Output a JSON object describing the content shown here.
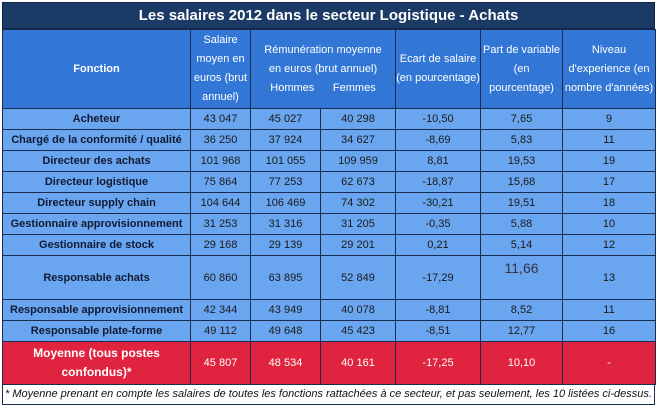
{
  "title": "Les salaires 2012 dans le secteur Logistique - Achats",
  "headers": {
    "fonction": "Fonction",
    "salaire_moyen": "Salaire moyen en euros (brut annuel)",
    "remuneration": "Rémunération moyenne en euros (brut annuel)",
    "hommes": "Hommes",
    "femmes": "Femmes",
    "ecart": "Ecart de salaire (en pourcentage)",
    "variable": "Part de variable (en pourcentage)",
    "experience": "Niveau d'experience (en nombre d'années)"
  },
  "rows": [
    {
      "fonction": "Acheteur",
      "salaire": "43 047",
      "hommes": "45 027",
      "femmes": "40 298",
      "ecart": "-10,50",
      "variable": "7,65",
      "experience": "9"
    },
    {
      "fonction": "Chargé de la conformité / qualité",
      "salaire": "36 250",
      "hommes": "37 924",
      "femmes": "34 627",
      "ecart": "-8,69",
      "variable": "5,83",
      "experience": "11"
    },
    {
      "fonction": "Directeur des achats",
      "salaire": "101 968",
      "hommes": "101 055",
      "femmes": "109 959",
      "ecart": "8,81",
      "variable": "19,53",
      "experience": "19"
    },
    {
      "fonction": "Directeur logistique",
      "salaire": "75 864",
      "hommes": "77 253",
      "femmes": "62 673",
      "ecart": "-18,87",
      "variable": "15,68",
      "experience": "17"
    },
    {
      "fonction": "Directeur supply chain",
      "salaire": "104 644",
      "hommes": "106 469",
      "femmes": "74 302",
      "ecart": "-30,21",
      "variable": "19,51",
      "experience": "18"
    },
    {
      "fonction": "Gestionnaire approvisionnement",
      "salaire": "31 253",
      "hommes": "31 316",
      "femmes": "31 205",
      "ecart": "-0,35",
      "variable": "5,88",
      "experience": "10"
    },
    {
      "fonction": "Gestionnaire de stock",
      "salaire": "29 168",
      "hommes": "29 139",
      "femmes": "29 201",
      "ecart": "0,21",
      "variable": "5,14",
      "experience": "12"
    },
    {
      "fonction": "Responsable achats",
      "salaire": "60 860",
      "hommes": "63 895",
      "femmes": "52 849",
      "ecart": "-17,29",
      "variable": "11,66",
      "experience": "13"
    },
    {
      "fonction": "Responsable approvisionnement",
      "salaire": "42 344",
      "hommes": "43 949",
      "femmes": "40 078",
      "ecart": "-8,81",
      "variable": "8,52",
      "experience": "11"
    },
    {
      "fonction": "Responsable plate-forme",
      "salaire": "49 112",
      "hommes": "49 648",
      "femmes": "45 423",
      "ecart": "-8,51",
      "variable": "12,77",
      "experience": "16"
    }
  ],
  "average": {
    "fonction": "Moyenne (tous postes confondus)*",
    "salaire": "45 807",
    "hommes": "48 534",
    "femmes": "40 161",
    "ecart": "-17,25",
    "variable": "10,10",
    "experience": "-"
  },
  "footnote": "* Moyenne prenant en compte les salaires de toutes les fonctions rattachées à ce secteur, et pas seulement, les 10 listées ci-dessus.",
  "colors": {
    "title_bg": "#1b3a66",
    "header_bg": "#3377d6",
    "row_bg": "#6aa5f0",
    "average_bg": "#e0233f"
  }
}
